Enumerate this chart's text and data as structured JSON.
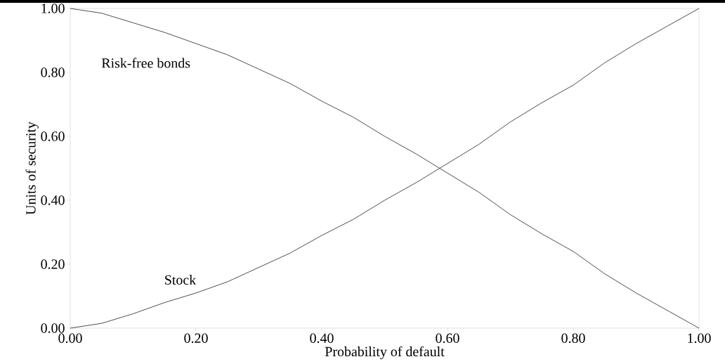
{
  "chart_data": {
    "type": "line",
    "xlabel": "Probability of default",
    "ylabel": "Units of security",
    "x": [
      0,
      0.05,
      0.1,
      0.15,
      0.2,
      0.25,
      0.3,
      0.35,
      0.4,
      0.45,
      0.5,
      0.55,
      0.6,
      0.65,
      0.7,
      0.75,
      0.8,
      0.85,
      0.9,
      0.95,
      1.0
    ],
    "series": [
      {
        "name": "Risk-free bonds",
        "color": "#3a3a3a",
        "values": [
          1.0,
          0.985,
          0.955,
          0.925,
          0.89,
          0.855,
          0.81,
          0.765,
          0.71,
          0.66,
          0.6,
          0.545,
          0.485,
          0.425,
          0.355,
          0.295,
          0.24,
          0.17,
          0.11,
          0.055,
          0.0
        ]
      },
      {
        "name": "Stock",
        "color": "#3a3a3a",
        "values": [
          0.0,
          0.015,
          0.045,
          0.08,
          0.11,
          0.145,
          0.19,
          0.235,
          0.29,
          0.34,
          0.4,
          0.455,
          0.515,
          0.575,
          0.645,
          0.705,
          0.76,
          0.83,
          0.89,
          0.945,
          1.0
        ]
      }
    ],
    "xlim": [
      0,
      1
    ],
    "ylim": [
      0,
      1
    ],
    "xticks": [
      {
        "value": 0,
        "label": "0.00"
      },
      {
        "value": 0.2,
        "label": "0.20"
      },
      {
        "value": 0.4,
        "label": "0.40"
      },
      {
        "value": 0.6,
        "label": "0.60"
      },
      {
        "value": 0.8,
        "label": "0.80"
      },
      {
        "value": 1,
        "label": "1.00"
      }
    ],
    "yticks": [
      {
        "value": 0,
        "label": "0.00"
      },
      {
        "value": 0.2,
        "label": "0.20"
      },
      {
        "value": 0.4,
        "label": "0.40"
      },
      {
        "value": 0.6,
        "label": "0.60"
      },
      {
        "value": 0.8,
        "label": "0.80"
      },
      {
        "value": 1,
        "label": "1.00"
      }
    ],
    "grid": false,
    "legend": false,
    "marker": "none",
    "line_style": "solid"
  }
}
